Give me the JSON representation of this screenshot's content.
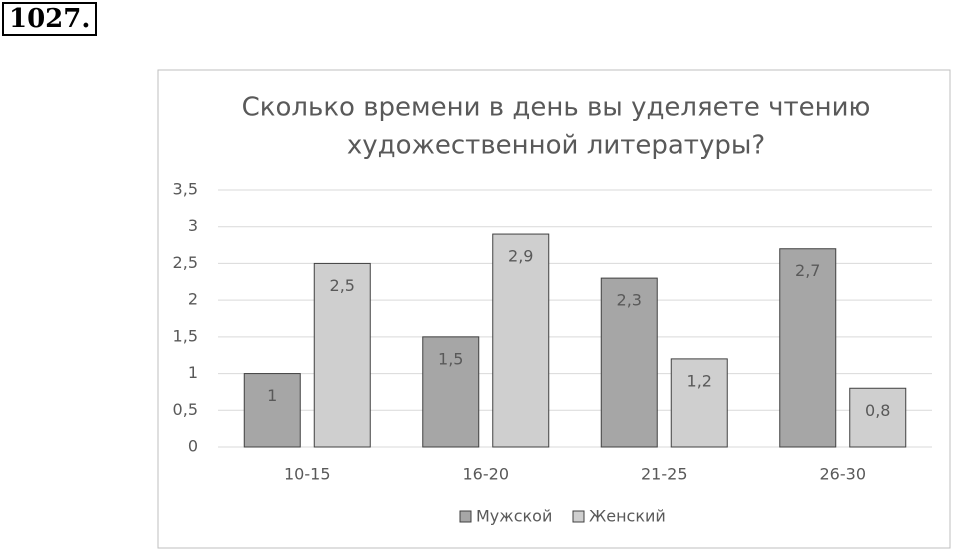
{
  "label": "1027.",
  "chart_data": {
    "type": "bar",
    "title": [
      "Сколько  времени в день вы уделяете чтению",
      "художественной  литературы?"
    ],
    "categories": [
      "10-15",
      "16-20",
      "21-25",
      "26-30"
    ],
    "series": [
      {
        "name": "Мужской",
        "color": "#a6a6a6",
        "values": [
          1,
          1.5,
          2.3,
          2.7
        ],
        "value_labels": [
          "1",
          "1,5",
          "2,3",
          "2,7"
        ]
      },
      {
        "name": "Женский",
        "color": "#cfcfcf",
        "values": [
          2.5,
          2.9,
          1.2,
          0.8
        ],
        "value_labels": [
          "2,5",
          "2,9",
          "1,2",
          "0,8"
        ]
      }
    ],
    "ylim": [
      0,
      3.5
    ],
    "yticks": [
      0,
      {
        "value": 0.5,
        "label": "0,5"
      },
      1,
      {
        "value": 1.5,
        "label": "1,5"
      },
      2,
      {
        "value": 2.5,
        "label": "2,5"
      },
      3,
      {
        "value": 3.5,
        "label": "3,5"
      }
    ],
    "grid": true,
    "legend": "bottom"
  }
}
